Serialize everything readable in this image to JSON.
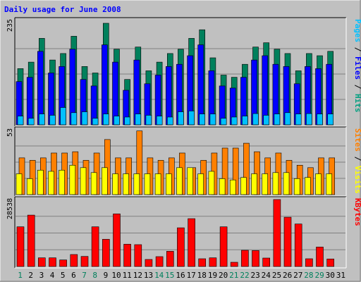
{
  "chart_data": {
    "type": "bar",
    "title": "Daily usage for June 2008",
    "categories": [
      "1",
      "2",
      "3",
      "4",
      "5",
      "6",
      "7",
      "8",
      "9",
      "10",
      "11",
      "12",
      "13",
      "14",
      "15",
      "16",
      "17",
      "18",
      "19",
      "20",
      "21",
      "22",
      "23",
      "24",
      "25",
      "26",
      "27",
      "28",
      "29",
      "30",
      "31"
    ],
    "weekend_days": [
      "1",
      "7",
      "8",
      "14",
      "15",
      "21",
      "22",
      "28",
      "29"
    ],
    "panels": [
      {
        "name": "top",
        "ymax": 235,
        "ymax_label": "235",
        "legend": [
          {
            "text": "Pages",
            "color": "#00c0ff"
          },
          {
            "text": "Files",
            "color": "#0000ff"
          },
          {
            "text": "Hits",
            "color": "#00a080"
          }
        ],
        "series": [
          {
            "name": "Hits",
            "color": "#00805c",
            "values": [
              130,
              145,
              200,
              150,
              165,
              205,
              135,
              120,
              235,
              175,
              105,
              180,
              125,
              145,
              165,
              175,
              200,
              220,
              155,
              115,
              110,
              140,
              180,
              190,
              175,
              165,
              125,
              165,
              160,
              170,
              0
            ]
          },
          {
            "name": "Files",
            "color": "#0000ff",
            "values": [
              100,
              110,
              170,
              120,
              135,
              175,
              105,
              90,
              185,
              145,
              80,
              150,
              95,
              115,
              135,
              140,
              160,
              185,
              125,
              90,
              85,
              110,
              150,
              160,
              140,
              135,
              95,
              135,
              130,
              140,
              0
            ]
          },
          {
            "name": "Pages",
            "color": "#00c0ff",
            "values": [
              20,
              15,
              25,
              22,
              40,
              28,
              30,
              15,
              25,
              20,
              18,
              25,
              22,
              20,
              18,
              30,
              32,
              25,
              25,
              15,
              18,
              20,
              26,
              22,
              25,
              28,
              25,
              26,
              25,
              25,
              0
            ]
          }
        ]
      },
      {
        "name": "middle",
        "ymax": 53,
        "ymax_label": "53",
        "legend": [
          {
            "text": "Sites",
            "color": "#ff8000"
          },
          {
            "text": "Visits",
            "color": "#ffff00"
          }
        ],
        "series": [
          {
            "name": "Sites",
            "color": "#ff8000",
            "values": [
              30,
              28,
              30,
              34,
              34,
              35,
              28,
              34,
              45,
              30,
              30,
              52,
              30,
              28,
              30,
              34,
              22,
              28,
              34,
              38,
              38,
              42,
              35,
              30,
              34,
              28,
              24,
              22,
              30,
              30,
              0
            ]
          },
          {
            "name": "Visits",
            "color": "#ffff00",
            "values": [
              17,
              13,
              20,
              19,
              20,
              24,
              22,
              18,
              22,
              17,
              17,
              17,
              17,
              17,
              17,
              22,
              22,
              17,
              19,
              13,
              12,
              14,
              17,
              17,
              18,
              18,
              13,
              14,
              17,
              17,
              0
            ]
          }
        ]
      },
      {
        "name": "bottom",
        "ymax": 28538,
        "ymax_label": "28538",
        "legend": [
          {
            "text": "KBytes",
            "color": "#ff0000"
          }
        ],
        "series": [
          {
            "name": "KBytes",
            "color": "#ff0000",
            "values": [
              16900,
              21900,
              3700,
              3700,
              2800,
              5100,
              4300,
              16900,
              11600,
              22400,
              9500,
              9300,
              3000,
              4200,
              6500,
              16500,
              20400,
              3300,
              3700,
              16900,
              1800,
              6900,
              6800,
              3600,
              28538,
              21000,
              18100,
              3300,
              8300,
              3200,
              0
            ]
          }
        ]
      }
    ]
  }
}
